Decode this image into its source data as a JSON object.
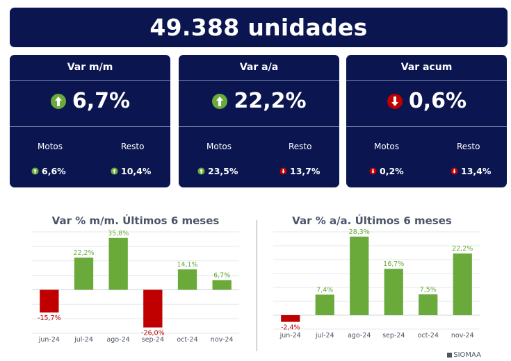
{
  "header": {
    "total": "49.388 unidades"
  },
  "colors": {
    "navy": "#0b1650",
    "positive": "#6aaa3a",
    "negative": "#c00000"
  },
  "cards": [
    {
      "title": "Var m/m",
      "value": "6,7%",
      "direction": "up",
      "motos_label": "Motos",
      "motos_value": "6,6%",
      "motos_direction": "up",
      "resto_label": "Resto",
      "resto_value": "10,4%",
      "resto_direction": "up"
    },
    {
      "title": "Var a/a",
      "value": "22,2%",
      "direction": "up",
      "motos_label": "Motos",
      "motos_value": "23,5%",
      "motos_direction": "up",
      "resto_label": "Resto",
      "resto_value": "13,7%",
      "resto_direction": "down"
    },
    {
      "title": "Var acum",
      "value": "0,6%",
      "direction": "down",
      "motos_label": "Motos",
      "motos_value": "0,2%",
      "motos_direction": "down",
      "resto_label": "Resto",
      "resto_value": "13,4%",
      "resto_direction": "down"
    }
  ],
  "chart_data": [
    {
      "type": "bar",
      "title": "Var % m/m. Últimos 6 meses",
      "categories": [
        "jun-24",
        "jul-24",
        "ago-24",
        "sep-24",
        "oct-24",
        "nov-24"
      ],
      "values": [
        -15.7,
        22.2,
        35.8,
        -26.0,
        14.1,
        6.7
      ],
      "labels": [
        "-15,7%",
        "22,2%",
        "35,8%",
        "-26,0%",
        "14,1%",
        "6,7%"
      ],
      "ylim": [
        -30,
        40
      ],
      "grid": true
    },
    {
      "type": "bar",
      "title": "Var % a/a. Últimos 6 meses",
      "categories": [
        "jun-24",
        "jul-24",
        "ago-24",
        "sep-24",
        "oct-24",
        "nov-24"
      ],
      "values": [
        -2.4,
        7.4,
        28.3,
        16.7,
        7.5,
        22.2
      ],
      "labels": [
        "-2,4%",
        "7,4%",
        "28,3%",
        "16,7%",
        "7,5%",
        "22,2%"
      ],
      "ylim": [
        -5,
        30
      ],
      "grid": true
    }
  ],
  "footer": {
    "brand": "SIOMAA"
  }
}
